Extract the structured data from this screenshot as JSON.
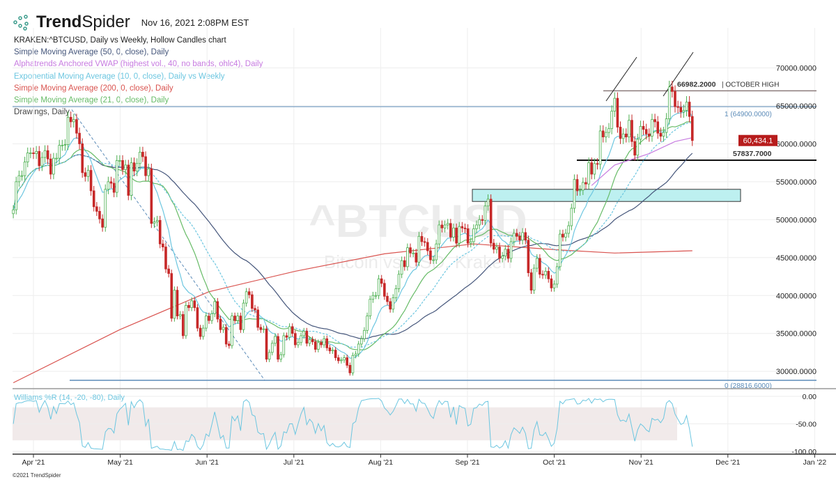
{
  "header": {
    "brand_bold": "Trend",
    "brand_light": "Spider",
    "timestamp": "Nov 16, 2021 2:08PM EST"
  },
  "legend": [
    {
      "text": "KRAKEN:^BTCUSD, Daily vs Weekly, Hollow Candles chart",
      "color": "#222222"
    },
    {
      "text": "Simple Moving Average (50, 0, close), Daily",
      "color": "#44557a"
    },
    {
      "text": "Alphatrends Anchored VWAP (highest vol., 40, no bands, ohlc4), Daily",
      "color": "#c77be0"
    },
    {
      "text": "Exponential Moving Average (10, 0, close), Daily vs Weekly",
      "color": "#6cc6e0"
    },
    {
      "text": "Simple Moving Average (200, 0, close), Daily",
      "color": "#d9534f"
    },
    {
      "text": "Simple Moving Average (21, 0, close), Daily",
      "color": "#66bb66"
    },
    {
      "text": "Drawings, Daily",
      "color": "#444444"
    }
  ],
  "watermark": {
    "symbol": "^BTCUSD",
    "name": "Bitcoin vs USD, Kraken"
  },
  "footer": "©2021 TrendSpider",
  "chart_data": [
    {
      "type": "candlestick",
      "title": "KRAKEN:^BTCUSD",
      "start_date": "2021-03-25",
      "end_date": "2021-11-16",
      "closes": [
        51300,
        55000,
        55800,
        55800,
        57600,
        58800,
        58800,
        58700,
        59000,
        57100,
        58200,
        59100,
        58000,
        56000,
        58100,
        58100,
        59800,
        59800,
        59900,
        63500,
        62900,
        63200,
        61400,
        60000,
        56200,
        55700,
        56500,
        53800,
        51700,
        51100,
        50100,
        49000,
        54000,
        55000,
        54800,
        53600,
        57800,
        57800,
        56600,
        57200,
        53200,
        57500,
        56400,
        57400,
        58900,
        58300,
        55800,
        56700,
        49500,
        49700,
        49900,
        46800,
        46400,
        43500,
        42900,
        37000,
        40700,
        37300,
        37500,
        34700,
        38700,
        38400,
        39300,
        38400,
        35700,
        34600,
        35700,
        37300,
        36700,
        37600,
        39200,
        36900,
        35500,
        35800,
        33600,
        33400,
        37300,
        36700,
        37300,
        35500,
        39000,
        40500,
        40100,
        38300,
        38100,
        35800,
        35500,
        35600,
        31600,
        32500,
        33700,
        34600,
        31600,
        32200,
        34700,
        34500,
        35900,
        35000,
        33500,
        33800,
        34700,
        35300,
        33700,
        34200,
        33900,
        32900,
        33800,
        33500,
        34300,
        33100,
        32700,
        32800,
        31800,
        31400,
        31500,
        31800,
        30800,
        29800,
        32100,
        32300,
        33600,
        34300,
        35400,
        37300,
        39500,
        40000,
        40000,
        42200,
        41600,
        39900,
        39200,
        38200,
        39700,
        40900,
        42800,
        44600,
        43800,
        46300,
        45600,
        45600,
        44400,
        47800,
        47100,
        47000,
        45900,
        44700,
        44700,
        46800,
        49300,
        48900,
        49300,
        49500,
        47700,
        48900,
        46900,
        49100,
        48900,
        48800,
        46900,
        47100,
        48800,
        49300,
        50000,
        49900,
        51800,
        52700,
        46900,
        46100,
        46400,
        44900,
        45200,
        46100,
        44900,
        47100,
        48200,
        47800,
        47300,
        48300,
        47300,
        43000,
        40700,
        43600,
        44900,
        42800,
        42700,
        43200,
        42200,
        41000,
        41500,
        43800,
        48100,
        47700,
        48200,
        49200,
        51500,
        55300,
        53800,
        53900,
        54900,
        54700,
        57500,
        56000,
        57400,
        57300,
        61700,
        60900,
        61500,
        62000,
        64300,
        66000,
        62200,
        60700,
        61300,
        60900,
        63100,
        60300,
        58500,
        60600,
        62300,
        61900,
        61300,
        61000,
        63200,
        62900,
        61400,
        61000,
        61500,
        63300,
        67500,
        66900,
        64900,
        64800,
        64200,
        64400,
        65500,
        63600,
        60434.1
      ],
      "last_price_label": "60,434.1",
      "y_ticks": [
        "70000.0000",
        "65000.0000",
        "60000.0000",
        "55000.0000",
        "50000.0000",
        "45000.0000",
        "40000.0000",
        "35000.0000",
        "30000.0000"
      ],
      "x_ticks": [
        "Apr '21",
        "May '21",
        "Jun '21",
        "Jul '21",
        "Aug '21",
        "Sep '21",
        "Oct '21",
        "Nov '21",
        "Dec '21",
        "Jan '22"
      ],
      "sma200_points": [
        [
          "2021-03-25",
          28500
        ],
        [
          "2021-05-01",
          35500
        ],
        [
          "2021-06-01",
          40500
        ],
        [
          "2021-07-01",
          43200
        ],
        [
          "2021-08-01",
          45500
        ],
        [
          "2021-09-01",
          46800
        ],
        [
          "2021-10-01",
          46000
        ],
        [
          "2021-10-20",
          45600
        ],
        [
          "2021-11-16",
          45900
        ]
      ],
      "vwap_points": [
        [
          "2021-10-12",
          54500
        ],
        [
          "2021-10-20",
          57200
        ],
        [
          "2021-11-01",
          58700
        ],
        [
          "2021-11-10",
          60300
        ],
        [
          "2021-11-16",
          60800
        ]
      ],
      "drawings": {
        "october_high": {
          "value": 66982.2,
          "label": "66982.2000",
          "note": "| OCTOBER HIGH"
        },
        "fib_1": {
          "value": 64900,
          "label": "1 (64900.0000)"
        },
        "fib_0": {
          "value": 28816.6,
          "label": "0 (28816.6000)"
        },
        "support": {
          "value": 57837.7,
          "label": "57837.7000"
        },
        "zone": {
          "from": 52400,
          "to": 54000,
          "color": "#bdf0f0"
        }
      },
      "colors": {
        "up": "#4caf50",
        "down": "#c62828",
        "sma50": "#44557a",
        "sma21": "#66bb66",
        "ema10": "#6cc6e0",
        "sma200": "#d9534f",
        "vwap": "#c77be0"
      }
    },
    {
      "type": "line",
      "title": "Williams %R (14, -20, -80), Daily",
      "ylim": [
        -100,
        0
      ],
      "y_ticks": [
        "0.00",
        "-50.00",
        "-100.00"
      ],
      "band": [
        -80,
        -20
      ],
      "color": "#6cc6e0"
    }
  ]
}
